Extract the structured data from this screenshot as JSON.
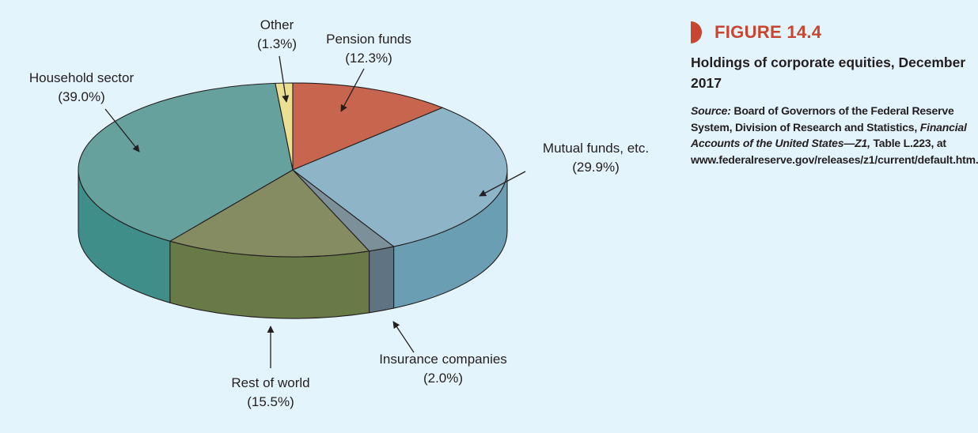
{
  "chart_data": {
    "type": "pie",
    "style": "3d",
    "categories": [
      "Pension funds",
      "Mutual funds, etc.",
      "Insurance companies",
      "Rest of world",
      "Household sector",
      "Other"
    ],
    "values": [
      12.3,
      29.9,
      2.0,
      15.5,
      39.0,
      1.3
    ],
    "labels": [
      {
        "name": "Pension funds",
        "pct": "(12.3%)"
      },
      {
        "name": "Mutual funds, etc.",
        "pct": "(29.9%)"
      },
      {
        "name": "Insurance companies",
        "pct": "(2.0%)"
      },
      {
        "name": "Rest of world",
        "pct": "(15.5%)"
      },
      {
        "name": "Household sector",
        "pct": "(39.0%)"
      },
      {
        "name": "Other",
        "pct": "(1.3%)"
      }
    ],
    "colors": {
      "top": [
        "#c7654e",
        "#8db4c7",
        "#7c909a",
        "#858c62",
        "#67a19d",
        "#eadf92"
      ],
      "side": [
        "#a44f3b",
        "#6a9eb3",
        "#5f7480",
        "#687a46",
        "#3f8e89",
        "#c9bd6d"
      ]
    }
  },
  "figure": {
    "number": "FIGURE 14.4",
    "title": "Holdings of corporate equities, December 2017",
    "source_label": "Source:",
    "source_text_1": " Board of Governors of the Federal Reserve System, Division of Research and Statistics, ",
    "source_italic": "Financial Accounts of the United States—Z1,",
    "source_text_2": " Table L.223, at www.federalreserve.gov/releases/z1/current/default.htm."
  },
  "colors": {
    "accent": "#c8452f",
    "background": "#e4f4fc",
    "text": "#231f20"
  }
}
